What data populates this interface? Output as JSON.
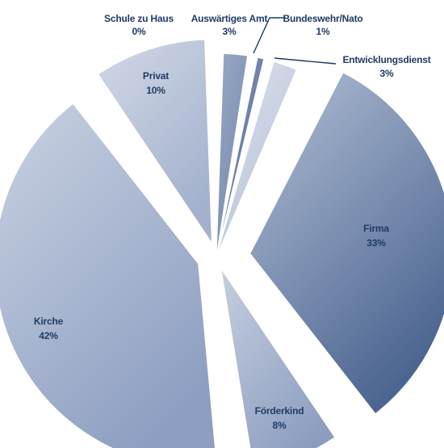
{
  "chart_data": {
    "type": "pie",
    "title": "",
    "slices": [
      {
        "label": "Auswärtiges Amt",
        "value": 3
      },
      {
        "label": "Bundeswehr/Nato",
        "value": 1
      },
      {
        "label": "Entwicklungsdienst",
        "value": 3
      },
      {
        "label": "Firma",
        "value": 33
      },
      {
        "label": "Förderkind",
        "value": 8
      },
      {
        "label": "Kirche",
        "value": 42
      },
      {
        "label": "Privat",
        "value": 10
      },
      {
        "label": "Schule zu Haus",
        "value": 0
      }
    ],
    "value_suffix": "%",
    "exploded": true,
    "legend": "none",
    "colors": {
      "Auswärtiges Amt": [
        "#9aa9c5",
        "#7688ad"
      ],
      "Bundeswehr/Nato": [
        "#7f91b5",
        "#5e739d"
      ],
      "Entwicklungsdienst": [
        "#dde3ee",
        "#b7c2d8"
      ],
      "Firma": [
        "#b4c0d6",
        "#4b6590"
      ],
      "Förderkind": [
        "#c6cfe0",
        "#8c9dbf"
      ],
      "Kirche": [
        "#c9d2e2",
        "#8d9ec1"
      ],
      "Privat": [
        "#d2d9e6",
        "#a3b1cd"
      ],
      "Schule zu Haus": [
        "#d2d9e6",
        "#a3b1cd"
      ]
    }
  }
}
